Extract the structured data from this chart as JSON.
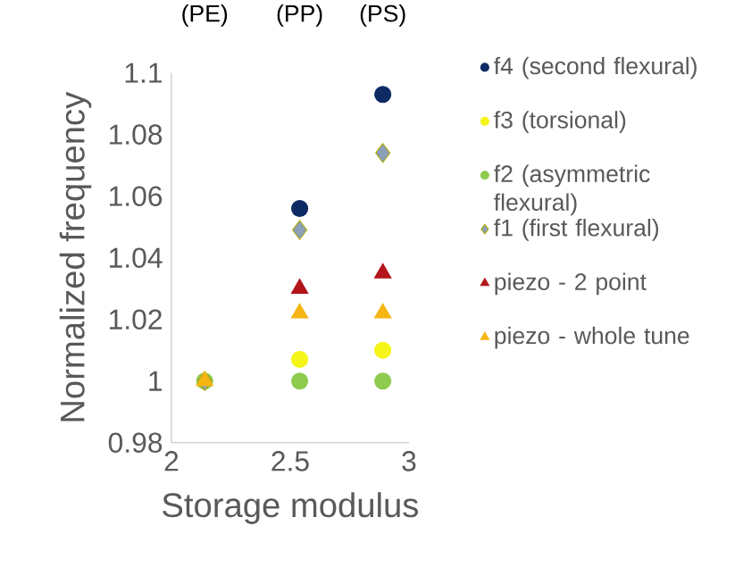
{
  "chart_data": {
    "type": "scatter",
    "xlabel": "Storage modulus",
    "ylabel": "Normalized frequency",
    "x": [
      2.14,
      2.54,
      2.89
    ],
    "series": [
      {
        "name": "f4  (second flexural)",
        "color": "#0d2a63",
        "marker": "circle",
        "values": [
          null,
          1.056,
          1.093
        ]
      },
      {
        "name": "f3 (torsional)",
        "color": "#f5f518",
        "marker": "circle",
        "values": [
          null,
          1.007,
          1.01
        ]
      },
      {
        "name": "f2 (asymmetric flexural)",
        "color": "#8fcb4e",
        "marker": "circle",
        "values": [
          1.0,
          1.0,
          1.0
        ]
      },
      {
        "name": "f1 (first flexural)",
        "color": "#8c9fb8",
        "marker": "diamond",
        "values": [
          1.0,
          1.049,
          1.074
        ]
      },
      {
        "name": "piezo - 2 point",
        "color": "#b3141a",
        "marker": "triangle",
        "values": [
          null,
          1.03,
          1.035
        ]
      },
      {
        "name": "piezo - whole tune",
        "color": "#f5b512",
        "marker": "triangle",
        "values": [
          1.0,
          1.022,
          1.022
        ]
      }
    ],
    "xlim": [
      2,
      3
    ],
    "xticks": [
      2,
      2.5,
      3
    ],
    "ylim": [
      0.98,
      1.1
    ],
    "yticks": [
      0.98,
      1,
      1.02,
      1.04,
      1.06,
      1.08,
      1.1
    ],
    "grid": false,
    "legend": "right",
    "annotations": [
      "(PE)",
      "(PP)",
      "(PS)"
    ]
  }
}
